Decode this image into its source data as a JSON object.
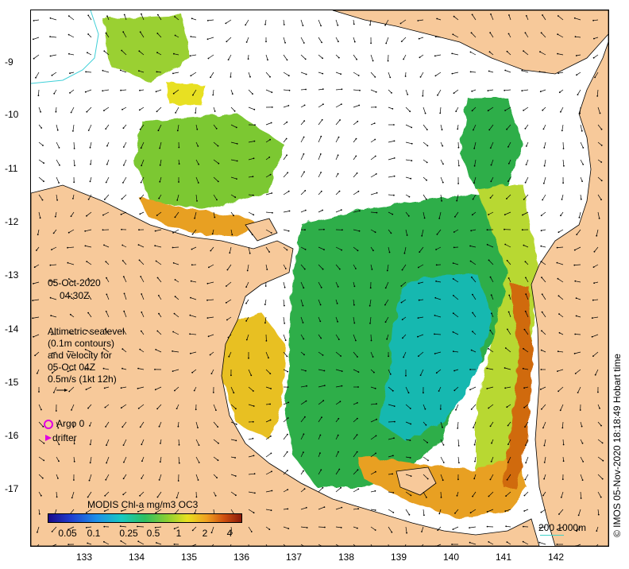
{
  "date": "05-Oct-2020",
  "time": "04:30Z",
  "legend_text": {
    "line1": "Altimetric sealevel",
    "line2": "(0.1m contours)",
    "line3": "and velocity for",
    "line4": "05-Oct 04Z",
    "line5": "0.5m/s (1kt 12h)"
  },
  "markers": {
    "argo_label": "Argo 0",
    "drifter_label": "drifter",
    "argo_color": "#e000e0",
    "drifter_color": "#e000e0"
  },
  "y_axis_labels": [
    "-9",
    "-10",
    "-11",
    "-12",
    "-13",
    "-14",
    "-15",
    "-16",
    "-17"
  ],
  "x_axis_labels": [
    "133",
    "134",
    "135",
    "136",
    "137",
    "138",
    "139",
    "140",
    "141",
    "142"
  ],
  "colorbar": {
    "title": "MODIS Chl-a mg/m3 OC3",
    "ticks": [
      "0.05",
      "0.1",
      "0.25",
      "0.5",
      "1",
      "2",
      "4"
    ]
  },
  "scale_bar": {
    "label": "200  1000m",
    "color": "#40d0c8"
  },
  "credit": "© IMOS 05-Nov-2020 18:18:49 Hobart time",
  "colors": {
    "land": "#f7c99a",
    "sea": "#ffffff",
    "chl_low": "#18b8b0",
    "chl_mid": "#2fae4a",
    "chl_high": "#e8e020",
    "chl_coast": "#e8a020",
    "chl_max": "#b0400a"
  }
}
